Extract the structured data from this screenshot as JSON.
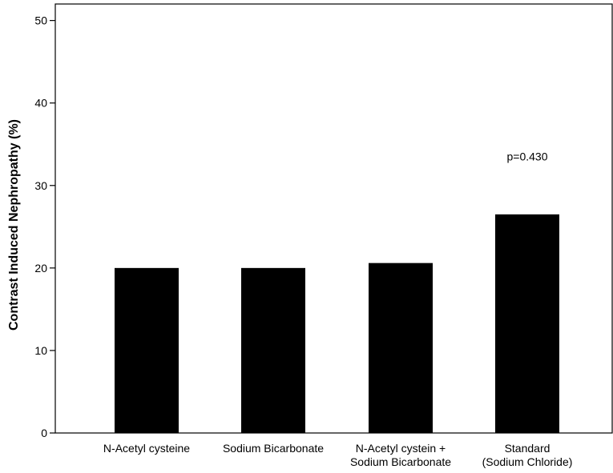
{
  "chart_data": {
    "type": "bar",
    "categories": [
      [
        "N-Acetyl cysteine"
      ],
      [
        "Sodium Bicarbonate"
      ],
      [
        "N-Acetyl cystein +",
        "Sodium Bicarbonate"
      ],
      [
        "Standard",
        "(Sodium Chloride)"
      ]
    ],
    "values": [
      20.0,
      20.0,
      20.6,
      26.5
    ],
    "title": "",
    "xlabel": "",
    "ylabel": "Contrast Induced Nephropathy (%)",
    "ylim": [
      0,
      52
    ],
    "yticks": [
      0,
      10,
      20,
      30,
      40,
      50
    ],
    "annotation": {
      "text": "p=0.430",
      "x_category_index": 3,
      "y": 33.5
    },
    "bar_color": "#000000",
    "grid": false,
    "legend": "none"
  }
}
